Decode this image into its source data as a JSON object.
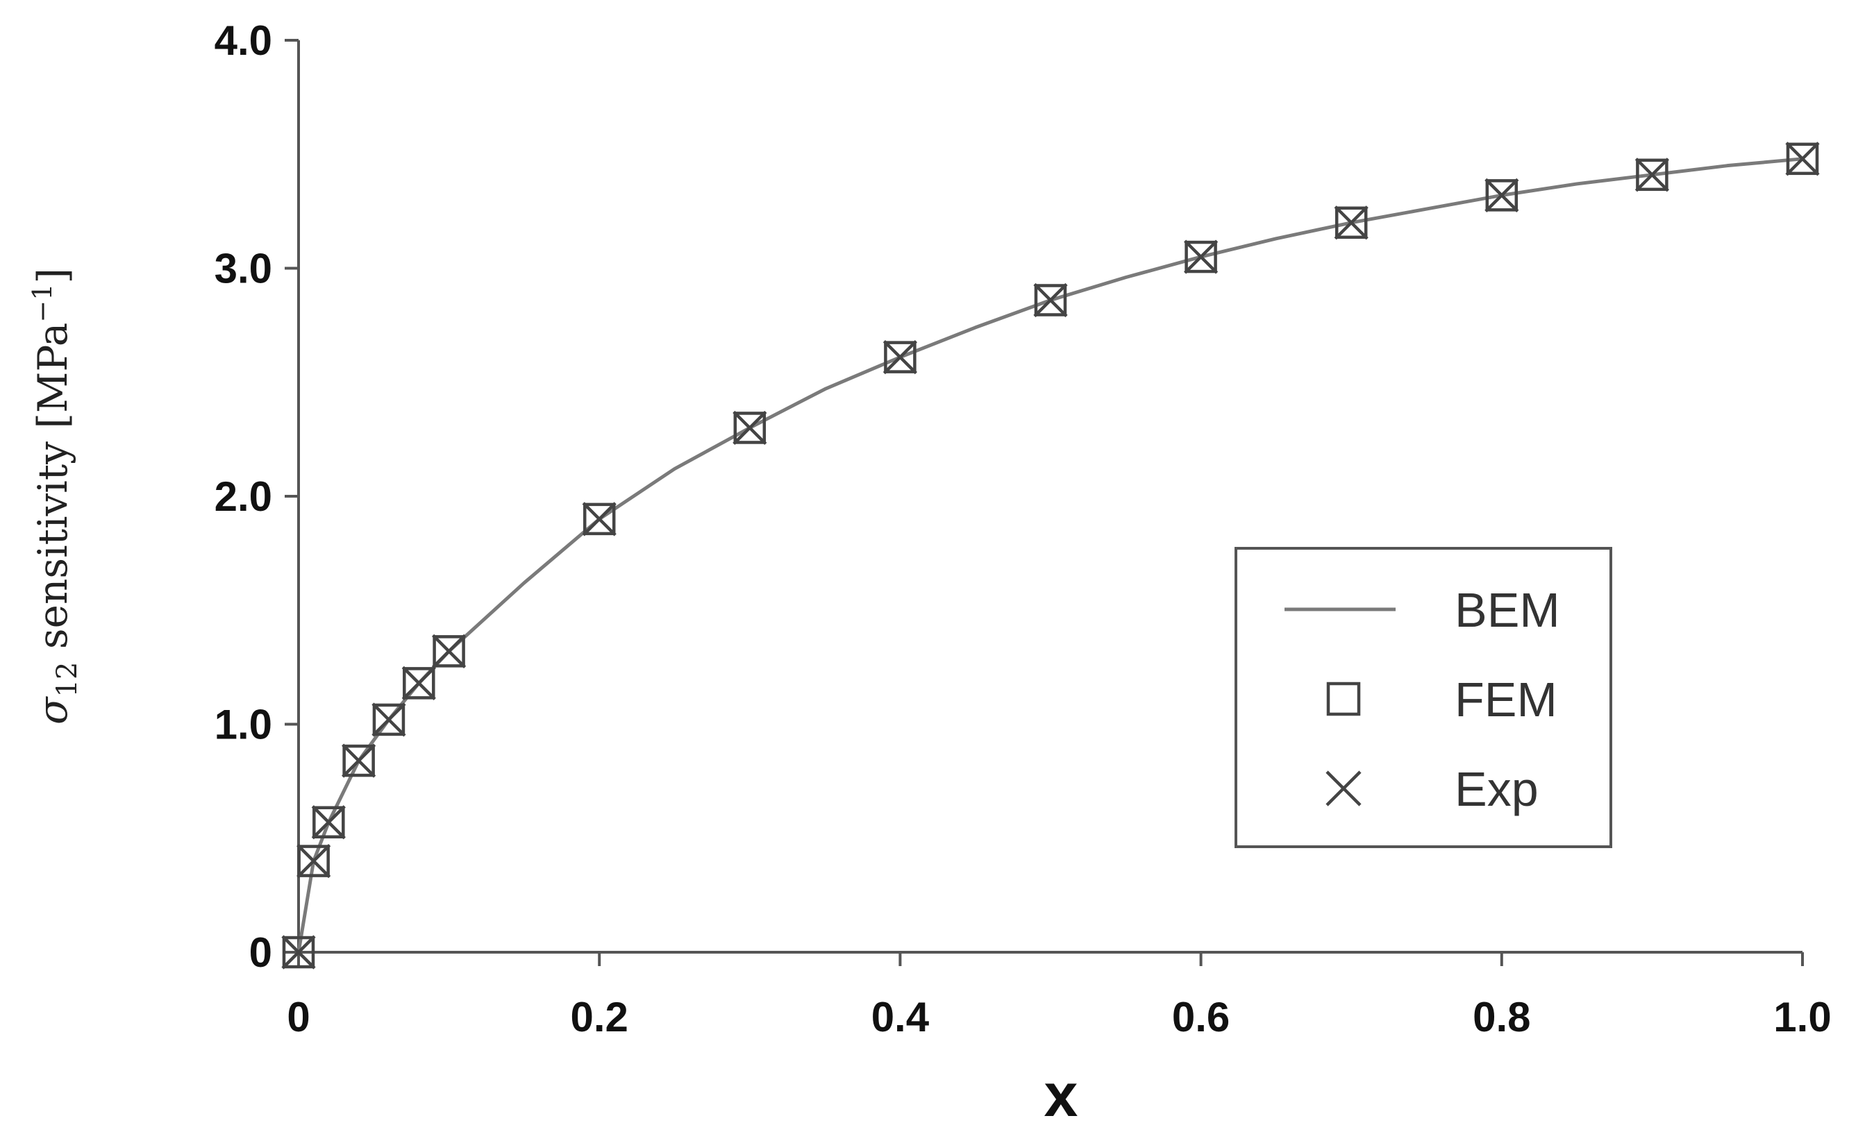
{
  "chart_data": {
    "type": "line",
    "title": "",
    "xlabel": "x",
    "ylabel": {
      "symbol": "σ",
      "subscript": "12",
      "text": " sensitivity [MPa",
      "superscript": "−1",
      "close": "]"
    },
    "xlim": [
      0,
      1.0
    ],
    "ylim": [
      0,
      4.0
    ],
    "xticks": [
      0,
      0.2,
      0.4,
      0.6,
      0.8,
      1.0
    ],
    "xtick_labels": [
      "0",
      "0.2",
      "0.4",
      "0.6",
      "0.8",
      "1.0"
    ],
    "yticks": [
      0,
      1.0,
      2.0,
      3.0,
      4.0
    ],
    "ytick_labels": [
      "0",
      "1.0",
      "2.0",
      "3.0",
      "4.0"
    ],
    "grid": false,
    "legend_position": "center-right",
    "series": [
      {
        "name": "BEM",
        "style": "line",
        "color": "#7a7a7a",
        "x": [
          0,
          0.01,
          0.02,
          0.04,
          0.06,
          0.08,
          0.1,
          0.15,
          0.2,
          0.25,
          0.3,
          0.35,
          0.4,
          0.45,
          0.5,
          0.55,
          0.6,
          0.65,
          0.7,
          0.75,
          0.8,
          0.85,
          0.9,
          0.95,
          1.0
        ],
        "y": [
          0,
          0.4,
          0.57,
          0.84,
          1.02,
          1.18,
          1.32,
          1.62,
          1.9,
          2.12,
          2.3,
          2.47,
          2.61,
          2.74,
          2.86,
          2.96,
          3.05,
          3.13,
          3.2,
          3.26,
          3.32,
          3.37,
          3.41,
          3.45,
          3.48
        ]
      },
      {
        "name": "FEM",
        "style": "square-marker",
        "color": "#444444",
        "x": [
          0,
          0.01,
          0.02,
          0.04,
          0.06,
          0.08,
          0.1,
          0.2,
          0.3,
          0.4,
          0.5,
          0.6,
          0.7,
          0.8,
          0.9,
          1.0
        ],
        "y": [
          0,
          0.4,
          0.57,
          0.84,
          1.02,
          1.18,
          1.32,
          1.9,
          2.3,
          2.61,
          2.86,
          3.05,
          3.2,
          3.32,
          3.41,
          3.48
        ]
      },
      {
        "name": "Exp",
        "style": "x-marker",
        "color": "#444444",
        "x": [
          0,
          0.01,
          0.02,
          0.04,
          0.06,
          0.08,
          0.1,
          0.2,
          0.3,
          0.4,
          0.5,
          0.6,
          0.7,
          0.8,
          0.9,
          1.0
        ],
        "y": [
          0,
          0.4,
          0.57,
          0.84,
          1.02,
          1.18,
          1.32,
          1.9,
          2.3,
          2.61,
          2.86,
          3.05,
          3.2,
          3.32,
          3.41,
          3.48
        ]
      }
    ]
  }
}
